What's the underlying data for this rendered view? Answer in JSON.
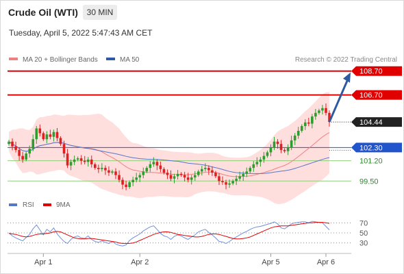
{
  "instrument": "Crude Oil (WTI)",
  "timeframe": "30 MIN",
  "datetime": "Tuesday, April 5, 2022 5:47:43 AM CET",
  "legend": {
    "ma20": "MA 20 + Bollinger Bands",
    "ma50": "MA 50",
    "rsi": "RSI",
    "rsi_ma": "9MA"
  },
  "copyright": "Research © 2022 Trading Central",
  "colors": {
    "bull": "#2e9c2e",
    "bear": "#e02020",
    "bollinger_fill": "#ffdede",
    "ma20": "#f08080",
    "ma50": "#5577c9",
    "resistance": "#e00000",
    "support": "#8fcf7a",
    "pivot": "#2255cc",
    "arrow": "#2f5aa0",
    "rsi": "#6f8fd8",
    "rsi_ma": "#e00000",
    "current": "#222222"
  },
  "chart_data": {
    "type": "candlestick",
    "price_ylim": [
      98.6,
      109.2
    ],
    "levels": [
      {
        "label": "108.70",
        "value": 108.7,
        "kind": "resistance"
      },
      {
        "label": "106.70",
        "value": 106.7,
        "kind": "resistance"
      },
      {
        "label": "104.44",
        "value": 104.44,
        "kind": "current"
      },
      {
        "label": "102.30",
        "value": 102.3,
        "kind": "pivot"
      },
      {
        "label": "101.20",
        "value": 101.2,
        "kind": "support"
      },
      {
        "label": "99.50",
        "value": 99.5,
        "kind": "support"
      }
    ],
    "x_labels": [
      "Apr 1",
      "Apr 2",
      "Apr 5",
      "Apr 6"
    ],
    "x_label_index": [
      10,
      38,
      76,
      92
    ],
    "n_bars": 94,
    "closes": [
      102.8,
      102.4,
      102.1,
      101.6,
      101.3,
      101.8,
      102.2,
      103.0,
      103.9,
      103.5,
      103.0,
      103.4,
      103.2,
      103.6,
      103.1,
      102.6,
      101.8,
      100.8,
      101.1,
      101.3,
      101.4,
      101.2,
      101.1,
      101.3,
      100.9,
      100.6,
      100.5,
      100.6,
      100.4,
      100.2,
      100.3,
      100.0,
      99.6,
      99.2,
      99.0,
      99.4,
      99.6,
      99.8,
      100.0,
      100.3,
      100.6,
      100.9,
      101.1,
      100.8,
      100.5,
      100.2,
      100.0,
      99.7,
      99.9,
      100.1,
      100.0,
      99.8,
      99.6,
      99.8,
      100.0,
      100.3,
      100.5,
      100.6,
      100.4,
      100.2,
      99.9,
      99.5,
      99.4,
      99.2,
      99.3,
      99.5,
      99.7,
      99.9,
      100.1,
      100.3,
      100.6,
      100.9,
      101.1,
      101.3,
      101.6,
      101.9,
      102.3,
      102.8,
      102.6,
      102.1,
      102.0,
      102.3,
      102.9,
      103.3,
      103.7,
      104.1,
      104.4,
      104.3,
      104.9,
      105.2,
      105.4,
      105.6,
      105.2,
      104.44
    ],
    "rsi": {
      "ylim": [
        20,
        80
      ],
      "ticks": [
        70,
        50,
        30
      ],
      "values": [
        50,
        44,
        40,
        37,
        34,
        41,
        47,
        58,
        66,
        56,
        46,
        57,
        52,
        60,
        48,
        40,
        33,
        29,
        37,
        42,
        44,
        40,
        39,
        44,
        37,
        33,
        31,
        34,
        31,
        29,
        33,
        28,
        25,
        24,
        26,
        35,
        40,
        44,
        48,
        54,
        58,
        62,
        64,
        57,
        49,
        44,
        42,
        37,
        43,
        46,
        44,
        40,
        37,
        42,
        46,
        52,
        55,
        57,
        51,
        46,
        40,
        33,
        32,
        29,
        33,
        38,
        42,
        46,
        50,
        53,
        57,
        60,
        62,
        63,
        65,
        67,
        69,
        72,
        68,
        60,
        58,
        63,
        68,
        70,
        71,
        72,
        72,
        70,
        73,
        72,
        71,
        70,
        63,
        56
      ],
      "ma": [
        49,
        48,
        47,
        45,
        43,
        42,
        43,
        45,
        47,
        48,
        48,
        49,
        50,
        52,
        53,
        52,
        49,
        46,
        43,
        40,
        39,
        38,
        38,
        39,
        39,
        38,
        37,
        36,
        35,
        34,
        33,
        32,
        30,
        29,
        29,
        29,
        30,
        32,
        35,
        38,
        41,
        44,
        47,
        49,
        51,
        52,
        52,
        51,
        49,
        47,
        46,
        45,
        44,
        43,
        42,
        42,
        43,
        45,
        47,
        48,
        48,
        47,
        45,
        43,
        41,
        39,
        38,
        38,
        39,
        40,
        42,
        45,
        48,
        51,
        54,
        57,
        60,
        62,
        63,
        64,
        64,
        64,
        65,
        66,
        67,
        68,
        69,
        70,
        70,
        71,
        71,
        71,
        70,
        69
      ]
    }
  }
}
